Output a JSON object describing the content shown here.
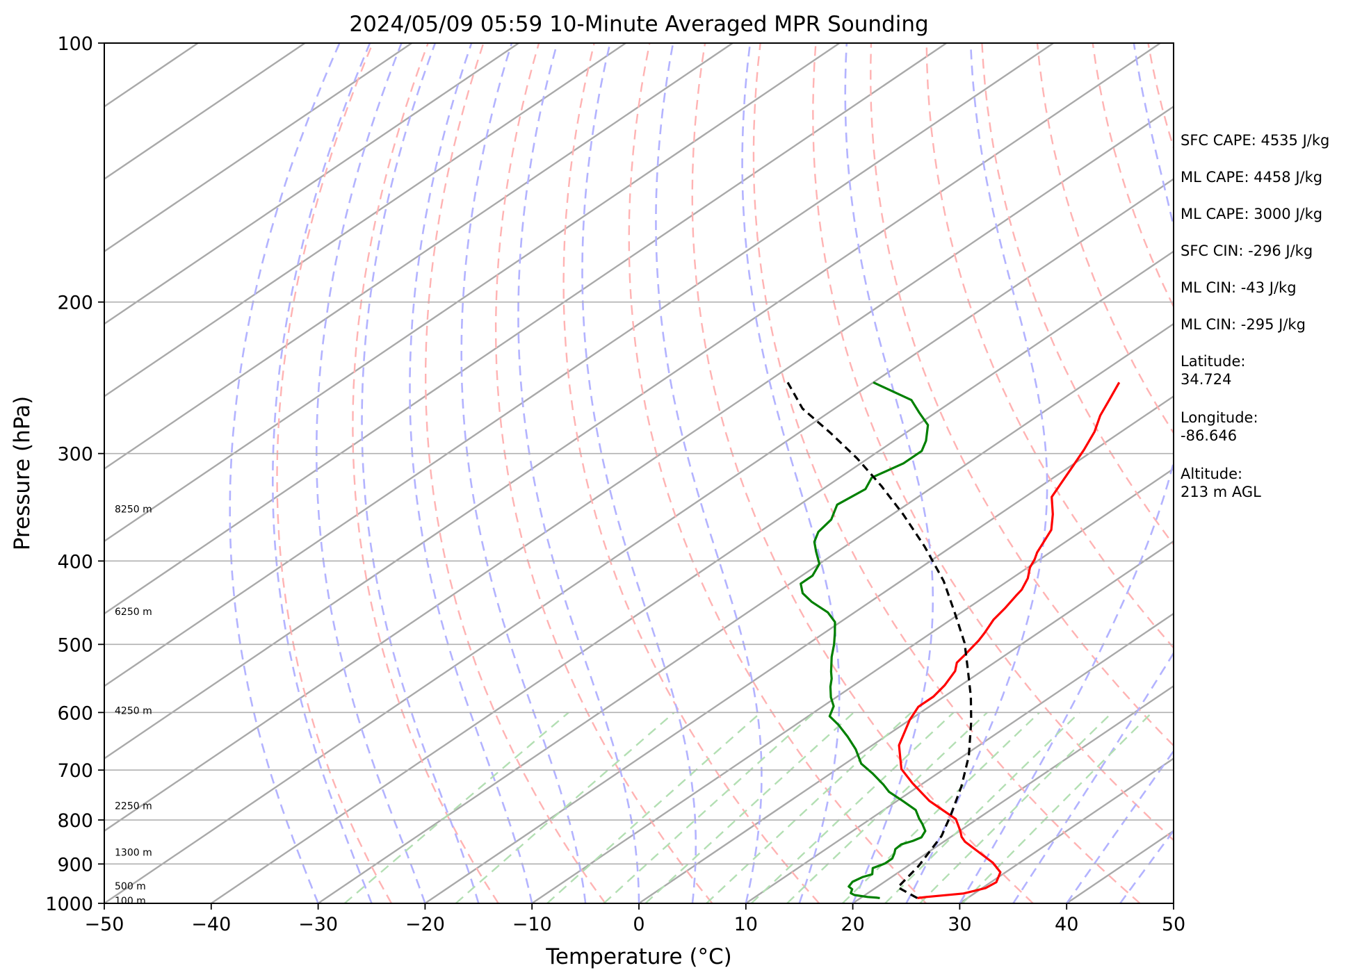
{
  "chart_data": {
    "type": "line",
    "subtype": "skew-T log-P diagram",
    "title": "2024/05/09 05:59 10-Minute Averaged MPR Sounding",
    "xlabel": "Temperature (°C)",
    "ylabel": "Pressure (hPa)",
    "xlim": [
      -50,
      50
    ],
    "ylim": [
      1000,
      100
    ],
    "yscale": "log",
    "grid": true,
    "xticks": [
      -50,
      -40,
      -30,
      -20,
      -10,
      0,
      10,
      20,
      30,
      40,
      50
    ],
    "xtick_labels": [
      "−50",
      "−40",
      "−30",
      "−20",
      "−10",
      "0",
      "10",
      "20",
      "30",
      "40",
      "50"
    ],
    "yticks": [
      100,
      200,
      300,
      400,
      500,
      600,
      700,
      800,
      900,
      1000
    ],
    "ytick_labels": [
      "100",
      "200",
      "300",
      "400",
      "500",
      "600",
      "700",
      "800",
      "900",
      "1000"
    ],
    "height_labels": [
      {
        "p": 348,
        "text": "8250 m"
      },
      {
        "p": 458,
        "text": "6250 m"
      },
      {
        "p": 597,
        "text": "4250 m"
      },
      {
        "p": 770,
        "text": "2250 m"
      },
      {
        "p": 872,
        "text": "1300 m"
      },
      {
        "p": 955,
        "text": "500 m"
      },
      {
        "p": 993,
        "text": "100 m"
      }
    ],
    "series": [
      {
        "role": "temperature",
        "color": "#ff0000",
        "points": [
          [
            25.3,
            986
          ],
          [
            26.0,
            983
          ],
          [
            29.0,
            974
          ],
          [
            30.3,
            960
          ],
          [
            30.5,
            945
          ],
          [
            29.5,
            920
          ],
          [
            27.5,
            897
          ],
          [
            24.5,
            870
          ],
          [
            22.0,
            848
          ],
          [
            21.0,
            837
          ],
          [
            20.0,
            823
          ],
          [
            18.0,
            798
          ],
          [
            15.0,
            775
          ],
          [
            13.0,
            760
          ],
          [
            9.0,
            725
          ],
          [
            6.0,
            698
          ],
          [
            2.5,
            655
          ],
          [
            0.0,
            612
          ],
          [
            -1.0,
            591
          ],
          [
            -1.0,
            575
          ],
          [
            -1.5,
            558
          ],
          [
            -2.5,
            537
          ],
          [
            -3.5,
            525
          ],
          [
            -3.8,
            515
          ],
          [
            -4.5,
            495
          ],
          [
            -5.0,
            485
          ],
          [
            -6.0,
            468
          ],
          [
            -6.5,
            454
          ],
          [
            -7.2,
            439
          ],
          [
            -7.5,
            432
          ],
          [
            -8.5,
            419
          ],
          [
            -9.8,
            407
          ],
          [
            -10.5,
            398
          ],
          [
            -11.2,
            391
          ],
          [
            -13.0,
            368
          ],
          [
            -15.0,
            353
          ],
          [
            -17.5,
            337
          ],
          [
            -19.8,
            310
          ],
          [
            -21.0,
            297
          ],
          [
            -22.5,
            283
          ],
          [
            -24.2,
            271
          ],
          [
            -25.5,
            260
          ],
          [
            -27.0,
            248
          ]
        ]
      },
      {
        "role": "dewpoint",
        "color": "#008000",
        "points": [
          [
            21.8,
            986
          ],
          [
            21.5,
            985
          ],
          [
            20.5,
            983
          ],
          [
            19.0,
            978
          ],
          [
            18.4,
            973
          ],
          [
            18.0,
            963
          ],
          [
            17.3,
            956
          ],
          [
            17.0,
            944
          ],
          [
            17.3,
            932
          ],
          [
            17.8,
            925
          ],
          [
            17.0,
            910
          ],
          [
            17.5,
            899
          ],
          [
            17.5,
            887
          ],
          [
            17.0,
            875
          ],
          [
            16.5,
            865
          ],
          [
            16.4,
            854
          ],
          [
            17.0,
            846
          ],
          [
            17.3,
            838
          ],
          [
            16.8,
            824
          ],
          [
            15.5,
            808
          ],
          [
            14.5,
            797
          ],
          [
            13.0,
            779
          ],
          [
            10.5,
            760
          ],
          [
            8.0,
            742
          ],
          [
            6.5,
            728
          ],
          [
            4.0,
            707
          ],
          [
            1.5,
            688
          ],
          [
            -1.0,
            662
          ],
          [
            -3.5,
            640
          ],
          [
            -6.0,
            620
          ],
          [
            -8.0,
            606
          ],
          [
            -9.0,
            590
          ],
          [
            -10.5,
            576
          ],
          [
            -12.0,
            560
          ],
          [
            -13.0,
            548
          ],
          [
            -14.0,
            538
          ],
          [
            -16.0,
            517
          ],
          [
            -17.5,
            500
          ],
          [
            -19.0,
            485
          ],
          [
            -20.5,
            471
          ],
          [
            -22.5,
            459
          ],
          [
            -25.5,
            446
          ],
          [
            -27.5,
            436
          ],
          [
            -29.0,
            425
          ],
          [
            -29.0,
            416
          ],
          [
            -30.0,
            403
          ],
          [
            -32.0,
            390
          ],
          [
            -33.5,
            380
          ],
          [
            -34.5,
            370
          ],
          [
            -35.0,
            358
          ],
          [
            -36.5,
            344
          ],
          [
            -36.0,
            330
          ],
          [
            -37.0,
            320
          ],
          [
            -36.0,
            308
          ],
          [
            -36.0,
            298
          ],
          [
            -37.0,
            290
          ],
          [
            -39.0,
            278
          ],
          [
            -41.5,
            269
          ],
          [
            -44.0,
            260
          ],
          [
            -50.0,
            248
          ]
        ]
      },
      {
        "role": "parcel",
        "color": "#000000",
        "style": "dashed",
        "points": [
          [
            25.3,
            986
          ],
          [
            22.0,
            958
          ],
          [
            21.0,
            905
          ],
          [
            19.0,
            835
          ],
          [
            17.0,
            790
          ],
          [
            14.0,
            731
          ],
          [
            10.5,
            674
          ],
          [
            6.0,
            615
          ],
          [
            2.5,
            575
          ],
          [
            -1.5,
            535
          ],
          [
            -5.5,
            498
          ],
          [
            -10.5,
            460
          ],
          [
            -16.0,
            422
          ],
          [
            -22.5,
            385
          ],
          [
            -29.0,
            353
          ],
          [
            -35.0,
            327
          ],
          [
            -41.0,
            304
          ],
          [
            -47.0,
            284
          ],
          [
            -53.0,
            266
          ],
          [
            -58.0,
            248
          ]
        ]
      }
    ],
    "annotations": [
      "SFC CAPE: 4535 J/kg",
      "ML CAPE: 4458 J/kg",
      "ML CAPE: 3000 J/kg",
      "SFC CIN: -296 J/kg",
      "ML CIN: -43 J/kg",
      "ML CIN: -295 J/kg",
      "Latitude:\n34.724",
      "Longitude:\n-86.646",
      "Altitude:\n213 m AGL"
    ]
  },
  "colors": {
    "temperature": "#ff0000",
    "dewpoint": "#008000",
    "parcel": "#000000",
    "isotherm": "#a9a9a9",
    "dry_adiabat": "#ffb3b3",
    "moist_adiabat": "#b3b3ff",
    "mixing_ratio": "#b3dfb3"
  }
}
